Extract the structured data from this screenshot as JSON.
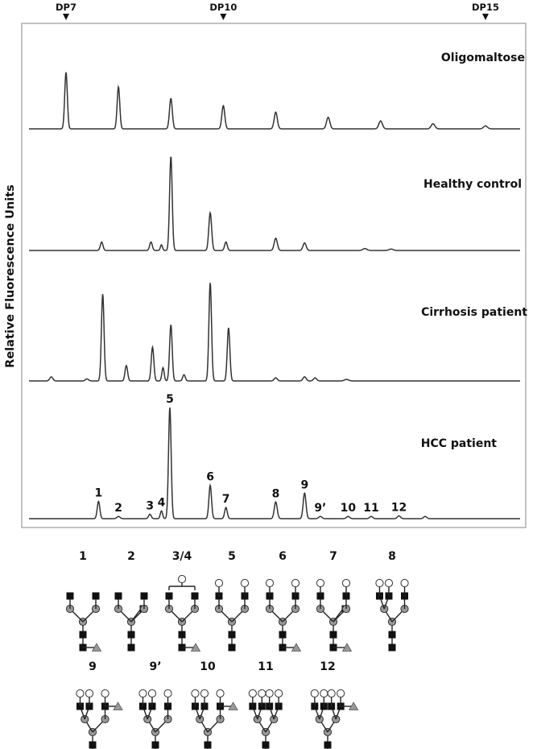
{
  "chart_data": {
    "type": "line",
    "ylabel": "Relative Fluorescence Units",
    "markers": [
      {
        "label": "DP7",
        "x": 7
      },
      {
        "label": "DP10",
        "x": 10
      },
      {
        "label": "DP15",
        "x": 15
      }
    ],
    "panels": [
      {
        "name": "Oligomaltose",
        "peaks": [
          {
            "x": 7.0,
            "h": 0.78,
            "w": 0.025
          },
          {
            "x": 8.0,
            "h": 0.58,
            "w": 0.025
          },
          {
            "x": 9.0,
            "h": 0.42,
            "w": 0.027
          },
          {
            "x": 10.0,
            "h": 0.32,
            "w": 0.028
          },
          {
            "x": 11.0,
            "h": 0.23,
            "w": 0.03
          },
          {
            "x": 12.0,
            "h": 0.16,
            "w": 0.032
          },
          {
            "x": 13.0,
            "h": 0.11,
            "w": 0.034
          },
          {
            "x": 14.0,
            "h": 0.07,
            "w": 0.036
          },
          {
            "x": 15.0,
            "h": 0.04,
            "w": 0.038
          }
        ]
      },
      {
        "name": "Healthy control",
        "peaks": [
          {
            "x": 7.68,
            "h": 0.09,
            "w": 0.025
          },
          {
            "x": 8.62,
            "h": 0.09,
            "w": 0.025
          },
          {
            "x": 8.82,
            "h": 0.06,
            "w": 0.02
          },
          {
            "x": 9.0,
            "h": 1.0,
            "w": 0.025
          },
          {
            "x": 9.75,
            "h": 0.4,
            "w": 0.027
          },
          {
            "x": 10.05,
            "h": 0.09,
            "w": 0.025
          },
          {
            "x": 11.0,
            "h": 0.13,
            "w": 0.03
          },
          {
            "x": 11.55,
            "h": 0.08,
            "w": 0.03
          },
          {
            "x": 12.7,
            "h": 0.02,
            "w": 0.04
          },
          {
            "x": 13.2,
            "h": 0.015,
            "w": 0.04
          }
        ]
      },
      {
        "name": "Cirrhosis patient",
        "peaks": [
          {
            "x": 6.72,
            "h": 0.04,
            "w": 0.03
          },
          {
            "x": 7.4,
            "h": 0.02,
            "w": 0.03
          },
          {
            "x": 7.7,
            "h": 0.85,
            "w": 0.025
          },
          {
            "x": 8.15,
            "h": 0.15,
            "w": 0.025
          },
          {
            "x": 8.65,
            "h": 0.33,
            "w": 0.025
          },
          {
            "x": 8.85,
            "h": 0.13,
            "w": 0.022
          },
          {
            "x": 9.0,
            "h": 0.55,
            "w": 0.025
          },
          {
            "x": 9.25,
            "h": 0.06,
            "w": 0.025
          },
          {
            "x": 9.75,
            "h": 0.96,
            "w": 0.025
          },
          {
            "x": 10.1,
            "h": 0.52,
            "w": 0.025
          },
          {
            "x": 11.0,
            "h": 0.03,
            "w": 0.03
          },
          {
            "x": 11.55,
            "h": 0.04,
            "w": 0.03
          },
          {
            "x": 11.75,
            "h": 0.03,
            "w": 0.03
          },
          {
            "x": 12.35,
            "h": 0.015,
            "w": 0.04
          }
        ]
      },
      {
        "name": "HCC patient",
        "peaks": [
          {
            "x": 7.62,
            "h": 0.155,
            "w": 0.025
          },
          {
            "x": 8.0,
            "h": 0.02,
            "w": 0.03
          },
          {
            "x": 8.6,
            "h": 0.04,
            "w": 0.025
          },
          {
            "x": 8.82,
            "h": 0.07,
            "w": 0.022
          },
          {
            "x": 8.98,
            "h": 1.0,
            "w": 0.025
          },
          {
            "x": 9.75,
            "h": 0.3,
            "w": 0.025
          },
          {
            "x": 10.05,
            "h": 0.1,
            "w": 0.025
          },
          {
            "x": 11.0,
            "h": 0.15,
            "w": 0.028
          },
          {
            "x": 11.55,
            "h": 0.23,
            "w": 0.027
          },
          {
            "x": 11.85,
            "h": 0.02,
            "w": 0.03
          },
          {
            "x": 12.38,
            "h": 0.02,
            "w": 0.03
          },
          {
            "x": 12.82,
            "h": 0.02,
            "w": 0.03
          },
          {
            "x": 13.35,
            "h": 0.025,
            "w": 0.03
          },
          {
            "x": 13.85,
            "h": 0.02,
            "w": 0.03
          }
        ],
        "peak_labels": [
          {
            "text": "1",
            "x": 7.62,
            "h": 0.155
          },
          {
            "text": "2",
            "x": 8.0,
            "h": 0.02
          },
          {
            "text": "3",
            "x": 8.6,
            "h": 0.04
          },
          {
            "text": "4",
            "x": 8.82,
            "h": 0.07
          },
          {
            "text": "5",
            "x": 8.98,
            "h": 1.0
          },
          {
            "text": "6",
            "x": 9.75,
            "h": 0.3
          },
          {
            "text": "7",
            "x": 10.05,
            "h": 0.1
          },
          {
            "text": "8",
            "x": 11.0,
            "h": 0.15
          },
          {
            "text": "9",
            "x": 11.55,
            "h": 0.23
          },
          {
            "text": "9’",
            "x": 11.85,
            "h": 0.02
          },
          {
            "text": "10",
            "x": 12.38,
            "h": 0.02
          },
          {
            "text": "11",
            "x": 12.82,
            "h": 0.02
          },
          {
            "text": "12",
            "x": 13.35,
            "h": 0.025
          }
        ]
      }
    ]
  },
  "glycans": [
    {
      "id": "1",
      "type": "bi",
      "fuc": true,
      "gal": 0,
      "bis": false
    },
    {
      "id": "2",
      "type": "bi",
      "fuc": false,
      "gal": 0,
      "bis": true
    },
    {
      "id": "3/4",
      "type": "bi",
      "fuc": true,
      "gal": 1,
      "bis": false
    },
    {
      "id": "5",
      "type": "bi",
      "fuc": false,
      "gal": 2,
      "bis": false
    },
    {
      "id": "6",
      "type": "bi",
      "fuc": true,
      "gal": 2,
      "bis": false
    },
    {
      "id": "7",
      "type": "bi",
      "fuc": true,
      "gal": 2,
      "bis": true
    },
    {
      "id": "8",
      "type": "tri",
      "fuc": false,
      "gal": 3,
      "lewis": false
    },
    {
      "id": "9",
      "type": "tri",
      "fuc": false,
      "gal": 3,
      "lewis": true
    },
    {
      "id": "9’",
      "type": "tri",
      "fuc": true,
      "gal": 3,
      "lewis": false
    },
    {
      "id": "10",
      "type": "tri",
      "fuc": true,
      "gal": 3,
      "lewis": true
    },
    {
      "id": "11",
      "type": "tetra",
      "fuc": false,
      "gal": 4,
      "lewis": false
    },
    {
      "id": "12",
      "type": "tetra",
      "fuc": false,
      "gal": 4,
      "lewis": true
    }
  ]
}
